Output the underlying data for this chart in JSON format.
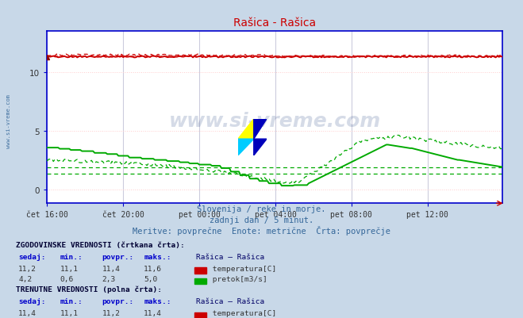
{
  "title": "Rašica - Rašica",
  "background_color": "#c8d8e8",
  "plot_bg_color": "#ffffff",
  "fig_bg_color": "#c8d8e8",
  "xlabel_ticks": [
    "čet 16:00",
    "čet 20:00",
    "pet 00:00",
    "pet 04:00",
    "pet 08:00",
    "pet 12:00"
  ],
  "ylim": [
    -1.2,
    13.5
  ],
  "xlim": [
    0,
    287
  ],
  "subtitle1": "Slovenija / reke in morje.",
  "subtitle2": "zadnji dan / 5 minut.",
  "subtitle3": "Meritve: povprečne  Enote: metrične  Črta: povprečje",
  "watermark": "www.si-vreme.com",
  "grid_color_h": "#ffcccc",
  "grid_color_v": "#ccccdd",
  "axis_color": "#0000cc",
  "temp_color": "#cc0000",
  "flow_color": "#00aa00",
  "n_points": 288,
  "tick_positions": [
    0,
    48,
    96,
    144,
    192,
    240
  ],
  "yticks": [
    0,
    5,
    10
  ],
  "flow_dashed_ref1": 1.9,
  "flow_dashed_ref2": 1.3,
  "temp_dashed_ref": 11.4
}
